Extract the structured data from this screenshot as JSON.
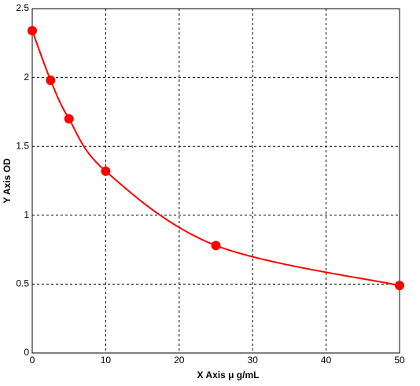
{
  "chart_data": {
    "type": "line",
    "x_label": "X Axis  μ g/mL",
    "y_label": "Y Axis OD",
    "x": [
      0,
      2.5,
      5,
      10,
      25,
      50
    ],
    "series": [
      {
        "color": "#ff0000",
        "values": [
          2.34,
          1.98,
          1.7,
          1.32,
          0.78,
          0.49
        ]
      }
    ],
    "xlim": [
      0,
      50
    ],
    "xticks": [
      0,
      10,
      20,
      30,
      40,
      50
    ],
    "ylim": [
      0,
      2.5
    ],
    "yticks": [
      0,
      0.5,
      1,
      1.5,
      2,
      2.5
    ],
    "grid": true,
    "markers": true,
    "smooth": true
  }
}
